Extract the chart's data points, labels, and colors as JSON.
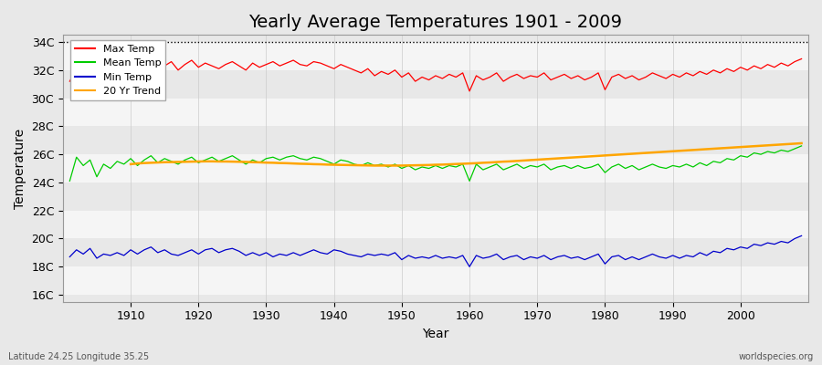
{
  "title": "Yearly Average Temperatures 1901 - 2009",
  "xlabel": "Year",
  "ylabel": "Temperature",
  "footer_left": "Latitude 24.25 Longitude 35.25",
  "footer_right": "worldspecies.org",
  "years": [
    1901,
    1902,
    1903,
    1904,
    1905,
    1906,
    1907,
    1908,
    1909,
    1910,
    1911,
    1912,
    1913,
    1914,
    1915,
    1916,
    1917,
    1918,
    1919,
    1920,
    1921,
    1922,
    1923,
    1924,
    1925,
    1926,
    1927,
    1928,
    1929,
    1930,
    1931,
    1932,
    1933,
    1934,
    1935,
    1936,
    1937,
    1938,
    1939,
    1940,
    1941,
    1942,
    1943,
    1944,
    1945,
    1946,
    1947,
    1948,
    1949,
    1950,
    1951,
    1952,
    1953,
    1954,
    1955,
    1956,
    1957,
    1958,
    1959,
    1960,
    1961,
    1962,
    1963,
    1964,
    1965,
    1966,
    1967,
    1968,
    1969,
    1970,
    1971,
    1972,
    1973,
    1974,
    1975,
    1976,
    1977,
    1978,
    1979,
    1980,
    1981,
    1982,
    1983,
    1984,
    1985,
    1986,
    1987,
    1988,
    1989,
    1990,
    1991,
    1992,
    1993,
    1994,
    1995,
    1996,
    1997,
    1998,
    1999,
    2000,
    2001,
    2002,
    2003,
    2004,
    2005,
    2006,
    2007,
    2008,
    2009
  ],
  "max_temp": [
    31.2,
    32.1,
    31.8,
    32.3,
    31.5,
    32.0,
    31.9,
    32.5,
    32.2,
    32.8,
    32.0,
    32.6,
    32.4,
    32.1,
    32.3,
    32.6,
    32.0,
    32.4,
    32.7,
    32.2,
    32.5,
    32.3,
    32.1,
    32.4,
    32.6,
    32.3,
    32.0,
    32.5,
    32.2,
    32.4,
    32.6,
    32.3,
    32.5,
    32.7,
    32.4,
    32.3,
    32.6,
    32.5,
    32.3,
    32.1,
    32.4,
    32.2,
    32.0,
    31.8,
    32.1,
    31.6,
    31.9,
    31.7,
    32.0,
    31.5,
    31.8,
    31.2,
    31.5,
    31.3,
    31.6,
    31.4,
    31.7,
    31.5,
    31.8,
    30.5,
    31.6,
    31.3,
    31.5,
    31.8,
    31.2,
    31.5,
    31.7,
    31.4,
    31.6,
    31.5,
    31.8,
    31.3,
    31.5,
    31.7,
    31.4,
    31.6,
    31.3,
    31.5,
    31.8,
    30.6,
    31.5,
    31.7,
    31.4,
    31.6,
    31.3,
    31.5,
    31.8,
    31.6,
    31.4,
    31.7,
    31.5,
    31.8,
    31.6,
    31.9,
    31.7,
    32.0,
    31.8,
    32.1,
    31.9,
    32.2,
    32.0,
    32.3,
    32.1,
    32.4,
    32.2,
    32.5,
    32.3,
    32.6,
    32.8
  ],
  "mean_temp": [
    24.1,
    25.8,
    25.2,
    25.6,
    24.4,
    25.3,
    25.0,
    25.5,
    25.3,
    25.7,
    25.2,
    25.6,
    25.9,
    25.4,
    25.7,
    25.5,
    25.3,
    25.6,
    25.8,
    25.4,
    25.6,
    25.8,
    25.5,
    25.7,
    25.9,
    25.6,
    25.3,
    25.6,
    25.4,
    25.7,
    25.8,
    25.6,
    25.8,
    25.9,
    25.7,
    25.6,
    25.8,
    25.7,
    25.5,
    25.3,
    25.6,
    25.5,
    25.3,
    25.2,
    25.4,
    25.2,
    25.3,
    25.1,
    25.3,
    25.0,
    25.2,
    24.9,
    25.1,
    25.0,
    25.2,
    25.0,
    25.2,
    25.1,
    25.3,
    24.1,
    25.3,
    24.9,
    25.1,
    25.3,
    24.9,
    25.1,
    25.3,
    25.0,
    25.2,
    25.1,
    25.3,
    24.9,
    25.1,
    25.2,
    25.0,
    25.2,
    25.0,
    25.1,
    25.3,
    24.7,
    25.1,
    25.3,
    25.0,
    25.2,
    24.9,
    25.1,
    25.3,
    25.1,
    25.0,
    25.2,
    25.1,
    25.3,
    25.1,
    25.4,
    25.2,
    25.5,
    25.4,
    25.7,
    25.6,
    25.9,
    25.8,
    26.1,
    26.0,
    26.2,
    26.1,
    26.3,
    26.2,
    26.4,
    26.6
  ],
  "min_temp": [
    18.7,
    19.2,
    18.9,
    19.3,
    18.6,
    18.9,
    18.8,
    19.0,
    18.8,
    19.2,
    18.9,
    19.2,
    19.4,
    19.0,
    19.2,
    18.9,
    18.8,
    19.0,
    19.2,
    18.9,
    19.2,
    19.3,
    19.0,
    19.2,
    19.3,
    19.1,
    18.8,
    19.0,
    18.8,
    19.0,
    18.7,
    18.9,
    18.8,
    19.0,
    18.8,
    19.0,
    19.2,
    19.0,
    18.9,
    19.2,
    19.1,
    18.9,
    18.8,
    18.7,
    18.9,
    18.8,
    18.9,
    18.8,
    19.0,
    18.5,
    18.8,
    18.6,
    18.7,
    18.6,
    18.8,
    18.6,
    18.7,
    18.6,
    18.8,
    18.0,
    18.8,
    18.6,
    18.7,
    18.9,
    18.5,
    18.7,
    18.8,
    18.5,
    18.7,
    18.6,
    18.8,
    18.5,
    18.7,
    18.8,
    18.6,
    18.7,
    18.5,
    18.7,
    18.9,
    18.2,
    18.7,
    18.8,
    18.5,
    18.7,
    18.5,
    18.7,
    18.9,
    18.7,
    18.6,
    18.8,
    18.6,
    18.8,
    18.7,
    19.0,
    18.8,
    19.1,
    19.0,
    19.3,
    19.2,
    19.4,
    19.3,
    19.6,
    19.5,
    19.7,
    19.6,
    19.8,
    19.7,
    20.0,
    20.2
  ],
  "trend": [
    25.3,
    25.35,
    25.38,
    25.4,
    25.42,
    25.44,
    25.45,
    25.46,
    25.47,
    25.48,
    25.49,
    25.5,
    25.5,
    25.49,
    25.49,
    25.48,
    25.47,
    25.46,
    25.44,
    25.43,
    25.41,
    25.4,
    25.38,
    25.37,
    25.35,
    25.33,
    25.32,
    25.3,
    25.29,
    25.27,
    25.26,
    25.25,
    25.24,
    25.23,
    25.22,
    25.21,
    25.2,
    25.2,
    25.2,
    25.2,
    25.2,
    25.21,
    25.22,
    25.23,
    25.24,
    25.26,
    25.27,
    25.29,
    25.31,
    25.33,
    25.35,
    25.37,
    25.4,
    25.42,
    25.45,
    25.48,
    25.5,
    25.53,
    25.56,
    25.59,
    25.62,
    25.65,
    25.68,
    25.71,
    25.74,
    25.77,
    25.8,
    25.83,
    25.86,
    25.89,
    25.92,
    25.95,
    25.98,
    26.01,
    26.04,
    26.07,
    26.1,
    26.13,
    26.16,
    26.19,
    26.22,
    26.25,
    26.28,
    26.31,
    26.34,
    26.37,
    26.4,
    26.43,
    26.46,
    26.49,
    26.52,
    26.55,
    26.58,
    26.61,
    26.64,
    26.67,
    26.7,
    26.73,
    26.76,
    26.79
  ],
  "ylim": [
    15.5,
    34.5
  ],
  "yticks": [
    16,
    18,
    20,
    22,
    24,
    26,
    28,
    30,
    32,
    34
  ],
  "ytick_labels": [
    "16C",
    "18C",
    "20C",
    "22C",
    "24C",
    "26C",
    "28C",
    "30C",
    "32C",
    "34C"
  ],
  "xticks": [
    1910,
    1920,
    1930,
    1940,
    1950,
    1960,
    1970,
    1980,
    1990,
    2000
  ],
  "dotted_line_y": 34,
  "bg_color": "#e8e8e8",
  "stripe_color": "#f5f5f5",
  "max_color": "#ff0000",
  "mean_color": "#00cc00",
  "min_color": "#0000cc",
  "trend_color": "#ffa500",
  "title_fontsize": 14,
  "axis_label_fontsize": 10,
  "tick_fontsize": 9
}
